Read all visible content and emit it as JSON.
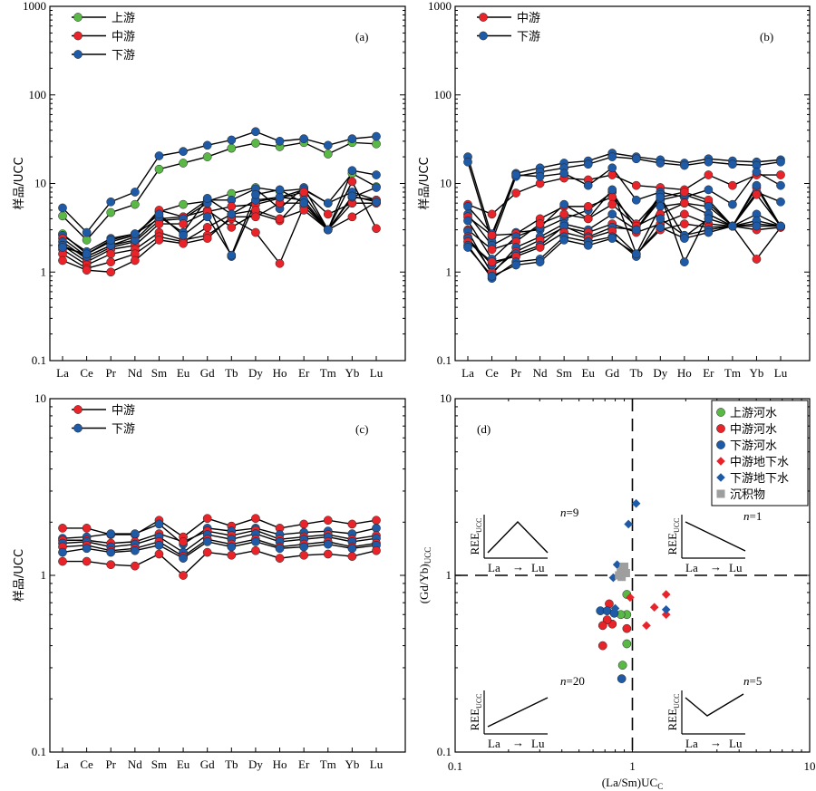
{
  "chart_data": [
    {
      "id": "a",
      "type": "line",
      "panel_label": "(a)",
      "ylabel": "样品/UCC",
      "yscale": "log",
      "ylim": [
        0.1,
        1000
      ],
      "yticks": [
        "0.1",
        "1",
        "10",
        "100",
        "1000"
      ],
      "categories": [
        "La",
        "Ce",
        "Pr",
        "Nd",
        "Sm",
        "Eu",
        "Gd",
        "Tb",
        "Dy",
        "Ho",
        "Er",
        "Tm",
        "Yb",
        "Lu"
      ],
      "legend": [
        "上游",
        "中游",
        "下游"
      ],
      "series": [
        {
          "group": "上游",
          "values": [
            4.3,
            2.3,
            4.7,
            5.8,
            14.5,
            17.0,
            20.0,
            25.0,
            28.5,
            26.0,
            29.0,
            21.5,
            29.0,
            28.0
          ]
        },
        {
          "group": "下游",
          "values": [
            5.3,
            2.8,
            6.2,
            8.0,
            20.5,
            23.0,
            27.0,
            31.0,
            38.5,
            30.0,
            32.0,
            27.0,
            32.0,
            34.0
          ]
        },
        {
          "group": "上游",
          "values": [
            2.7,
            1.6,
            2.2,
            2.6,
            4.8,
            5.8,
            6.3,
            7.7,
            9.0,
            8.2,
            8.7,
            6.0,
            13.0,
            9.2
          ]
        },
        {
          "group": "下游",
          "values": [
            2.6,
            1.7,
            2.4,
            2.7,
            4.0,
            4.2,
            6.5,
            6.5,
            8.7,
            5.2,
            9.0,
            3.0,
            14.0,
            12.5
          ]
        },
        {
          "group": "中游",
          "values": [
            2.4,
            1.5,
            2.0,
            2.5,
            5.0,
            4.2,
            5.0,
            3.2,
            4.6,
            3.8,
            7.5,
            3.0,
            10.5,
            3.1
          ]
        },
        {
          "group": "下游",
          "values": [
            2.2,
            1.4,
            1.9,
            2.2,
            3.8,
            4.0,
            6.0,
            1.5,
            6.2,
            7.0,
            8.5,
            6.0,
            8.0,
            6.5
          ]
        },
        {
          "group": "中游",
          "values": [
            2.0,
            1.3,
            1.8,
            2.0,
            3.5,
            3.5,
            4.8,
            5.5,
            5.8,
            6.8,
            8.0,
            4.5,
            6.0,
            6.0
          ]
        },
        {
          "group": "中游",
          "values": [
            1.8,
            1.2,
            1.6,
            1.8,
            2.8,
            2.3,
            2.6,
            4.0,
            2.8,
            1.25,
            5.5,
            3.0,
            4.2,
            6.2
          ]
        },
        {
          "group": "中游",
          "values": [
            1.6,
            1.1,
            1.3,
            1.6,
            2.5,
            2.2,
            3.2,
            4.5,
            5.0,
            4.0,
            5.0,
            3.0,
            7.0,
            6.5
          ]
        },
        {
          "group": "中游",
          "values": [
            1.35,
            1.05,
            1.0,
            1.35,
            2.3,
            2.1,
            2.4,
            4.2,
            4.2,
            6.0,
            6.0,
            3.0,
            6.0,
            6.0
          ]
        },
        {
          "group": "下游",
          "values": [
            2.0,
            1.5,
            2.0,
            2.3,
            4.2,
            2.8,
            6.8,
            4.5,
            6.5,
            7.0,
            6.5,
            3.0,
            7.0,
            9.0
          ]
        },
        {
          "group": "下游",
          "values": [
            1.9,
            1.6,
            2.3,
            2.7,
            4.5,
            2.6,
            4.2,
            1.55,
            7.5,
            8.5,
            6.0,
            3.0,
            7.2,
            6.2
          ]
        }
      ]
    },
    {
      "id": "b",
      "type": "line",
      "panel_label": "(b)",
      "ylabel": "样品/UCC",
      "yscale": "log",
      "ylim": [
        0.1,
        1000
      ],
      "yticks": [
        "0.1",
        "1",
        "10",
        "100",
        "1000"
      ],
      "categories": [
        "La",
        "Ce",
        "Pr",
        "Nd",
        "Sm",
        "Eu",
        "Gd",
        "Tb",
        "Dy",
        "Ho",
        "Er",
        "Tm",
        "Yb",
        "Lu"
      ],
      "legend": [
        "中游",
        "下游"
      ],
      "series": [
        {
          "group": "下游",
          "values": [
            20.0,
            2.5,
            13.0,
            15.0,
            17.0,
            18.0,
            22.0,
            20.0,
            18.5,
            17.0,
            19.0,
            18.0,
            17.5,
            18.5
          ]
        },
        {
          "group": "下游",
          "values": [
            17.5,
            2.2,
            12.0,
            13.5,
            15.0,
            16.5,
            20.0,
            19.0,
            17.0,
            16.0,
            17.5,
            16.5,
            16.0,
            17.5
          ]
        },
        {
          "group": "中游",
          "values": [
            5.8,
            4.5,
            7.8,
            10.0,
            11.5,
            11.0,
            12.5,
            9.5,
            9.0,
            8.5,
            12.5,
            9.5,
            12.5,
            12.5
          ]
        },
        {
          "group": "下游",
          "values": [
            5.5,
            2.7,
            12.5,
            12.0,
            13.0,
            9.5,
            15.0,
            6.5,
            8.0,
            7.0,
            8.5,
            5.8,
            13.5,
            9.5
          ]
        },
        {
          "group": "下游",
          "values": [
            4.5,
            2.0,
            2.8,
            3.0,
            4.0,
            5.0,
            8.0,
            3.0,
            6.5,
            7.5,
            6.0,
            3.3,
            8.0,
            6.2
          ]
        },
        {
          "group": "中游",
          "values": [
            4.2,
            2.6,
            2.7,
            4.0,
            5.5,
            5.5,
            7.0,
            3.5,
            7.0,
            8.0,
            6.5,
            3.3,
            9.0,
            3.2
          ]
        },
        {
          "group": "下游",
          "values": [
            3.8,
            1.4,
            2.5,
            3.2,
            5.8,
            4.0,
            8.5,
            1.6,
            5.5,
            6.0,
            5.5,
            3.3,
            9.5,
            3.3
          ]
        },
        {
          "group": "中游",
          "values": [
            3.0,
            1.8,
            2.2,
            3.5,
            4.5,
            4.0,
            5.8,
            3.3,
            4.5,
            6.0,
            4.5,
            3.3,
            7.5,
            3.3
          ]
        },
        {
          "group": "下游",
          "values": [
            2.9,
            0.95,
            1.9,
            2.5,
            3.5,
            3.0,
            4.5,
            3.0,
            7.5,
            1.3,
            4.5,
            3.3,
            4.5,
            3.3
          ]
        },
        {
          "group": "中游",
          "values": [
            2.5,
            1.0,
            1.7,
            2.3,
            3.2,
            2.8,
            3.5,
            2.8,
            3.5,
            4.5,
            3.5,
            3.3,
            3.0,
            3.2
          ]
        },
        {
          "group": "下游",
          "values": [
            2.4,
            1.2,
            1.6,
            2.0,
            3.3,
            2.5,
            3.2,
            3.0,
            7.0,
            2.5,
            4.0,
            3.3,
            3.5,
            3.3
          ]
        },
        {
          "group": "中游",
          "values": [
            2.2,
            1.3,
            1.5,
            1.9,
            2.8,
            2.4,
            2.9,
            1.6,
            3.0,
            3.5,
            3.2,
            3.3,
            1.4,
            3.2
          ]
        },
        {
          "group": "下游",
          "values": [
            2.0,
            0.85,
            1.3,
            1.4,
            2.5,
            2.2,
            2.5,
            1.5,
            4.0,
            2.6,
            3.0,
            3.3,
            3.8,
            3.3
          ]
        },
        {
          "group": "下游",
          "values": [
            1.9,
            0.9,
            1.2,
            1.3,
            2.3,
            2.0,
            2.4,
            1.6,
            3.2,
            2.4,
            2.8,
            3.3,
            3.3,
            3.3
          ]
        }
      ]
    },
    {
      "id": "c",
      "type": "line",
      "panel_label": "(c)",
      "ylabel": "样品/UCC",
      "yscale": "log",
      "ylim": [
        0.1,
        10
      ],
      "yticks": [
        "0.1",
        "1",
        "10"
      ],
      "categories": [
        "La",
        "Ce",
        "Pr",
        "Nd",
        "Sm",
        "Eu",
        "Gd",
        "Tb",
        "Dy",
        "Ho",
        "Er",
        "Tm",
        "Yb",
        "Lu"
      ],
      "legend": [
        "中游",
        "下游"
      ],
      "series": [
        {
          "group": "中游",
          "values": [
            1.85,
            1.85,
            1.7,
            1.7,
            2.05,
            1.65,
            2.1,
            1.9,
            2.1,
            1.85,
            1.95,
            2.05,
            1.95,
            2.05
          ]
        },
        {
          "group": "下游",
          "values": [
            1.62,
            1.65,
            1.72,
            1.72,
            1.95,
            1.5,
            1.85,
            1.78,
            1.85,
            1.7,
            1.75,
            1.78,
            1.72,
            1.85
          ]
        },
        {
          "group": "中游",
          "values": [
            1.58,
            1.58,
            1.52,
            1.55,
            1.72,
            1.55,
            1.78,
            1.68,
            1.8,
            1.6,
            1.65,
            1.7,
            1.6,
            1.68
          ]
        },
        {
          "group": "下游",
          "values": [
            1.52,
            1.55,
            1.45,
            1.5,
            1.65,
            1.35,
            1.7,
            1.6,
            1.72,
            1.55,
            1.6,
            1.65,
            1.55,
            1.62
          ]
        },
        {
          "group": "中游",
          "values": [
            1.45,
            1.48,
            1.38,
            1.42,
            1.55,
            1.28,
            1.6,
            1.5,
            1.6,
            1.45,
            1.5,
            1.55,
            1.45,
            1.52
          ]
        },
        {
          "group": "下游",
          "values": [
            1.35,
            1.42,
            1.35,
            1.38,
            1.48,
            1.25,
            1.55,
            1.45,
            1.55,
            1.42,
            1.45,
            1.5,
            1.42,
            1.48
          ]
        },
        {
          "group": "中游",
          "values": [
            1.2,
            1.2,
            1.15,
            1.13,
            1.32,
            1.0,
            1.35,
            1.3,
            1.38,
            1.25,
            1.3,
            1.32,
            1.28,
            1.38
          ]
        }
      ]
    },
    {
      "id": "d",
      "type": "scatter",
      "panel_label": "(d)",
      "xlabel": "(La/Sm)UCC",
      "ylabel": "(Gd/Yb)UCC",
      "xscale": "log",
      "yscale": "log",
      "xlim": [
        0.1,
        10
      ],
      "ylim": [
        0.1,
        10
      ],
      "xticks": [
        "0.1",
        "1",
        "10"
      ],
      "yticks": [
        "0.1",
        "1",
        "10"
      ],
      "legend": [
        "上游河水",
        "中游河水",
        "下游河水",
        "中游地下水",
        "下游地下水",
        "沉积物"
      ],
      "series": [
        {
          "name": "上游河水",
          "color": "#5ab946",
          "marker": "circle",
          "points": [
            [
              0.93,
              0.78
            ],
            [
              0.93,
              0.6
            ],
            [
              0.86,
              0.6
            ],
            [
              0.93,
              0.41
            ],
            [
              0.88,
              0.31
            ]
          ]
        },
        {
          "name": "中游河水",
          "color": "#e8242a",
          "marker": "circle",
          "points": [
            [
              0.74,
              0.69
            ],
            [
              0.77,
              0.53
            ],
            [
              0.72,
              0.56
            ],
            [
              0.68,
              0.52
            ],
            [
              0.68,
              0.4
            ],
            [
              0.93,
              0.5
            ]
          ]
        },
        {
          "name": "下游河水",
          "color": "#1e5aa6",
          "marker": "circle",
          "points": [
            [
              0.66,
              0.63
            ],
            [
              0.72,
              0.63
            ],
            [
              0.79,
              0.61
            ],
            [
              0.87,
              0.26
            ]
          ]
        },
        {
          "name": "中游地下水",
          "color": "#e8242a",
          "marker": "diamond",
          "points": [
            [
              0.97,
              0.75
            ],
            [
              1.33,
              0.66
            ],
            [
              1.2,
              0.52
            ],
            [
              1.55,
              0.78
            ],
            [
              1.55,
              0.6
            ]
          ]
        },
        {
          "name": "下游地下水",
          "color": "#1e5aa6",
          "marker": "diamond",
          "points": [
            [
              1.05,
              2.55
            ],
            [
              0.95,
              1.95
            ],
            [
              0.82,
              1.15
            ],
            [
              0.78,
              0.97
            ],
            [
              0.8,
              0.65
            ],
            [
              1.55,
              0.64
            ]
          ]
        },
        {
          "name": "沉积物",
          "color": "#9e9e9e",
          "marker": "square",
          "points": [
            [
              0.9,
              1.12
            ],
            [
              0.88,
              1.06
            ],
            [
              0.86,
              1.04
            ],
            [
              0.84,
              1.0
            ],
            [
              0.87,
              0.98
            ],
            [
              0.92,
              1.03
            ],
            [
              0.89,
              1.1
            ]
          ]
        }
      ],
      "insets": [
        {
          "pos": "tl",
          "ylabel": "REEUCC",
          "xlabel_left": "La",
          "xlabel_right": "Lu",
          "arrow": "→",
          "n_label": "n",
          "n_value": "=9",
          "shape": "peak"
        },
        {
          "pos": "tr",
          "ylabel": "REEUCC",
          "xlabel_left": "La",
          "xlabel_right": "Lu",
          "arrow": "→",
          "n_label": "n",
          "n_value": "=1",
          "shape": "down"
        },
        {
          "pos": "bl",
          "ylabel": "REEUCC",
          "xlabel_left": "La",
          "xlabel_right": "Lu",
          "arrow": "→",
          "n_label": "n",
          "n_value": "=20",
          "shape": "up"
        },
        {
          "pos": "br",
          "ylabel": "REEUCC",
          "xlabel_left": "La",
          "xlabel_right": "Lu",
          "arrow": "→",
          "n_label": "n",
          "n_value": "=5",
          "shape": "valley"
        }
      ],
      "reference_lines": {
        "x": 1,
        "y": 1,
        "style": "dashed"
      }
    }
  ],
  "colors": {
    "上游": "#5ab946",
    "中游": "#e8242a",
    "下游": "#1e5aa6",
    "line": "#000000"
  }
}
